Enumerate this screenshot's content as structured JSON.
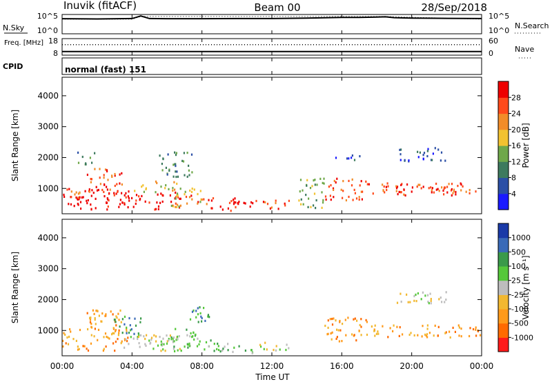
{
  "header": {
    "station": "Inuvik (fitACF)",
    "beam": "Beam 00",
    "date": "28/Sep/2018"
  },
  "mode": {
    "cpid_label": "CPID",
    "cpid_text": "normal (fast) 151"
  },
  "colors": {
    "background": "#ffffff",
    "frame": "#000000"
  },
  "chart_data": [
    {
      "type": "line",
      "title": "",
      "left_label": "N.Sky",
      "right_label": "N.Search",
      "left_ticks": [
        "10^5",
        "10^0"
      ],
      "right_ticks": [
        "10^5",
        "10^0"
      ],
      "scale": "log",
      "ylim": [
        1,
        100000
      ],
      "series": [
        {
          "name": "N.Sky",
          "style": "solid",
          "x": [
            0,
            2,
            4,
            4.5,
            5,
            6,
            8,
            10,
            12,
            14,
            15,
            16,
            17,
            18,
            18.5,
            19,
            20,
            22,
            24
          ],
          "y": [
            8000,
            7000,
            9000,
            40000,
            9000,
            8000,
            8000,
            9000,
            9000,
            12000,
            14000,
            18000,
            18000,
            22000,
            25000,
            15000,
            12000,
            10000,
            9000
          ]
        },
        {
          "name": "N.Search",
          "style": "dotted",
          "x": [
            0,
            4,
            4.5,
            18.5,
            24
          ],
          "y": [
            6000,
            6000,
            30000,
            30000,
            6000
          ]
        }
      ]
    },
    {
      "type": "line",
      "left_label": "Freq. [MHz]",
      "right_label": "Nave",
      "left_ticks": [
        "18",
        "8"
      ],
      "right_ticks": [
        "60",
        "0"
      ],
      "ylim": [
        8,
        18
      ],
      "series": [
        {
          "name": "Freq.",
          "style": "solid",
          "x": [
            0,
            24
          ],
          "y": [
            10.2,
            10.2
          ]
        },
        {
          "name": "Nave",
          "style": "dotted",
          "x": [
            0,
            24
          ],
          "y": [
            38,
            38
          ]
        }
      ]
    },
    {
      "type": "heatmap",
      "variable": "Power",
      "ylabel": "Slant Range [km]",
      "yticks": [
        1000,
        2000,
        3000,
        4000
      ],
      "ylim": [
        180,
        4600
      ],
      "xlim": [
        0,
        24
      ],
      "colorbar": {
        "label": "Power [dB]",
        "ticks": [
          "4",
          "8",
          "12",
          "16",
          "20",
          "24",
          "28"
        ],
        "colors": [
          "#1a1aff",
          "#2b4fa6",
          "#3d7a5e",
          "#6fa84a",
          "#f2c230",
          "#f28c28",
          "#ff4a1a",
          "#ee0000"
        ]
      },
      "regions": [
        {
          "t0": 0.0,
          "t1": 3.8,
          "r0": 350,
          "r1": 1100,
          "level": 7
        },
        {
          "t0": 0.2,
          "t1": 1.4,
          "r0": 700,
          "r1": 1000,
          "level": 5
        },
        {
          "t0": 1.4,
          "t1": 3.4,
          "r0": 800,
          "r1": 1700,
          "level": 6
        },
        {
          "t0": 3.5,
          "t1": 6.8,
          "r0": 350,
          "r1": 900,
          "level": 7
        },
        {
          "t0": 3.9,
          "t1": 6.6,
          "r0": 900,
          "r1": 1300,
          "level": 4
        },
        {
          "t0": 6.2,
          "t1": 8.0,
          "r0": 400,
          "r1": 1100,
          "level": 4
        },
        {
          "t0": 7.0,
          "t1": 8.4,
          "r0": 450,
          "r1": 800,
          "level": 6
        },
        {
          "t0": 8.4,
          "t1": 11.0,
          "r0": 300,
          "r1": 750,
          "level": 7
        },
        {
          "t0": 11.0,
          "t1": 13.0,
          "r0": 350,
          "r1": 650,
          "level": 6
        },
        {
          "t0": 13.5,
          "t1": 15.0,
          "r0": 400,
          "r1": 1400,
          "level": 3
        },
        {
          "t0": 15.0,
          "t1": 17.5,
          "r0": 650,
          "r1": 1350,
          "level": 6
        },
        {
          "t0": 17.5,
          "t1": 23.9,
          "r0": 800,
          "r1": 1200,
          "level": 6
        },
        {
          "t0": 18.5,
          "t1": 22.5,
          "r0": 900,
          "r1": 1100,
          "level": 7
        },
        {
          "t0": 0.8,
          "t1": 2.2,
          "r0": 1800,
          "r1": 2200,
          "level": 2
        },
        {
          "t0": 5.5,
          "t1": 7.5,
          "r0": 1400,
          "r1": 2200,
          "level": 2
        },
        {
          "t0": 19.0,
          "t1": 22.0,
          "r0": 1900,
          "r1": 2350,
          "level": 1
        },
        {
          "t0": 15.5,
          "t1": 17.0,
          "r0": 1950,
          "r1": 2150,
          "level": 1
        }
      ]
    },
    {
      "type": "heatmap",
      "variable": "Velocity",
      "ylabel": "Slant Range [km]",
      "yticks": [
        1000,
        2000,
        3000,
        4000
      ],
      "ylim": [
        180,
        4600
      ],
      "xlim": [
        0,
        24
      ],
      "xticks": [
        "00:00",
        "04:00",
        "08:00",
        "12:00",
        "16:00",
        "20:00",
        "00:00"
      ],
      "xlabel": "Time UT",
      "colorbar": {
        "label": "Velocity [m s⁻¹]",
        "ticks": [
          "-1000",
          "-500",
          "-100",
          "-25",
          "25",
          "100",
          "500",
          "1000"
        ],
        "colors": [
          "#ff1a1a",
          "#ff6a00",
          "#ff9a1a",
          "#f2b830",
          "#bdbdbd",
          "#55c83a",
          "#3a9a4a",
          "#3a6ab8",
          "#1a3aa8"
        ]
      },
      "regions": [
        {
          "t0": 0.0,
          "t1": 3.8,
          "r0": 350,
          "r1": 1100,
          "level": 2
        },
        {
          "t0": 1.4,
          "t1": 3.4,
          "r0": 800,
          "r1": 1700,
          "level": 2
        },
        {
          "t0": 2.8,
          "t1": 4.5,
          "r0": 900,
          "r1": 1500,
          "level": 6
        },
        {
          "t0": 3.5,
          "t1": 6.8,
          "r0": 350,
          "r1": 900,
          "level": 4
        },
        {
          "t0": 6.2,
          "t1": 8.4,
          "r0": 400,
          "r1": 1100,
          "level": 5
        },
        {
          "t0": 7.0,
          "t1": 8.4,
          "r0": 1300,
          "r1": 1800,
          "level": 6
        },
        {
          "t0": 8.4,
          "t1": 11.0,
          "r0": 300,
          "r1": 750,
          "level": 5
        },
        {
          "t0": 11.0,
          "t1": 13.0,
          "r0": 350,
          "r1": 650,
          "level": 4
        },
        {
          "t0": 15.0,
          "t1": 17.5,
          "r0": 650,
          "r1": 1450,
          "level": 2
        },
        {
          "t0": 17.5,
          "t1": 23.9,
          "r0": 800,
          "r1": 1200,
          "level": 2
        },
        {
          "t0": 4.3,
          "t1": 6.8,
          "r0": 500,
          "r1": 900,
          "level": 4
        },
        {
          "t0": 19.0,
          "t1": 22.0,
          "r0": 1900,
          "r1": 2300,
          "level": 4
        }
      ]
    }
  ]
}
